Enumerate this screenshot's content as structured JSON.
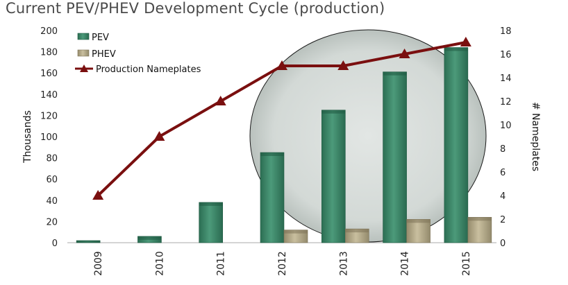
{
  "title": "Current PEV/PHEV Development Cycle (production)",
  "colors": {
    "pev": "#3e8b6c",
    "phev": "#b5ab8a",
    "line": "#7a0f0f",
    "ellipse": "#cfd6d3"
  },
  "chart_data": {
    "type": "bar",
    "categories": [
      "2009",
      "2010",
      "2011",
      "2012",
      "2013",
      "2014",
      "2015"
    ],
    "series": [
      {
        "name": "PEV",
        "axis": "left",
        "kind": "bar",
        "values": [
          2,
          6,
          38,
          85,
          125,
          161,
          184
        ]
      },
      {
        "name": "PHEV",
        "axis": "left",
        "kind": "bar",
        "values": [
          0,
          0,
          0,
          12,
          13,
          22,
          24
        ]
      },
      {
        "name": "Production Nameplates",
        "axis": "right",
        "kind": "line",
        "values": [
          4,
          9,
          12,
          15,
          15,
          16,
          17
        ]
      }
    ],
    "ylabel": "Thousands",
    "y2label": "# Nameplates",
    "ylim": [
      0,
      200
    ],
    "y2lim": [
      0,
      18
    ],
    "yticks": [
      0,
      20,
      40,
      60,
      80,
      100,
      120,
      140,
      160,
      180,
      200
    ],
    "y2ticks": [
      0,
      2,
      4,
      6,
      8,
      10,
      12,
      14,
      16,
      18
    ],
    "legend_position": "top-left",
    "grid": false
  }
}
